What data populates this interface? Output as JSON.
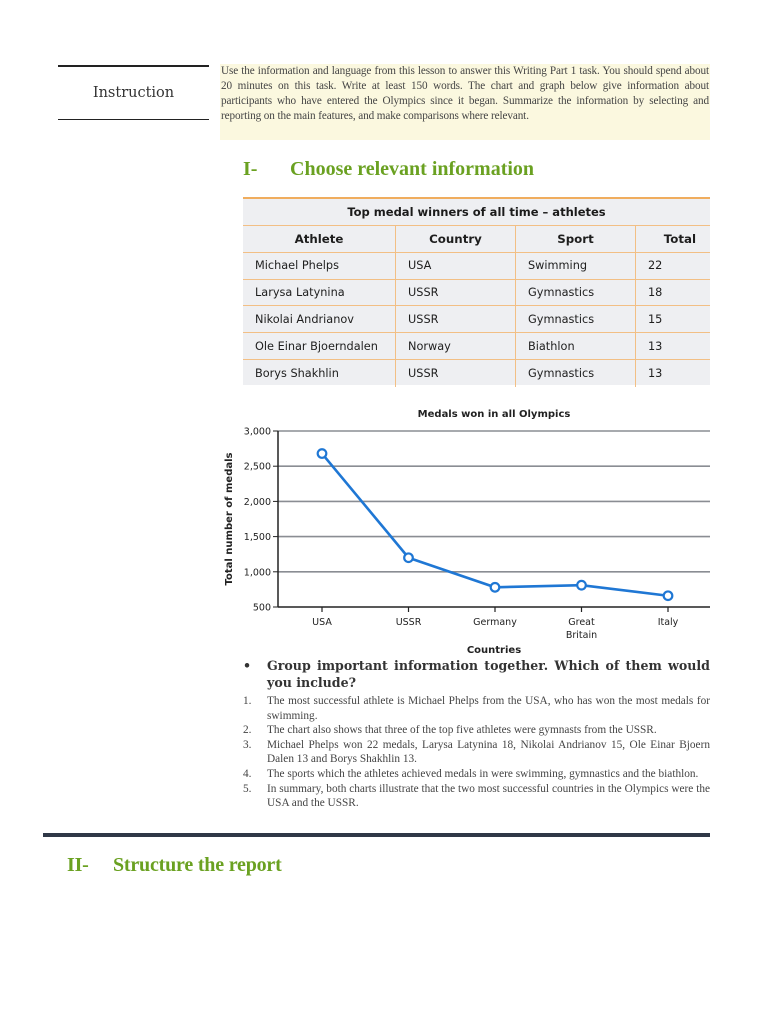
{
  "instruction": {
    "label": "Instruction",
    "text": "Use the information and language from this lesson to answer this Writing Part 1 task. You should spend about 20 minutes on this task. Write at least 150 words. The chart and graph below give information about participants who have entered the Olympics since it began. Summarize the information by selecting and reporting on the main features, and make comparisons where relevant."
  },
  "section1": {
    "number": "I-",
    "title": "Choose relevant information"
  },
  "table": {
    "title": "Top medal winners of all time – athletes",
    "headers": [
      "Athlete",
      "Country",
      "Sport",
      "Total"
    ],
    "rows": [
      [
        "Michael Phelps",
        "USA",
        "Swimming",
        "22"
      ],
      [
        "Larysa Latynina",
        "USSR",
        "Gymnastics",
        "18"
      ],
      [
        "Nikolai Andrianov",
        "USSR",
        "Gymnastics",
        "15"
      ],
      [
        "Ole Einar Bjoerndalen",
        "Norway",
        "Biathlon",
        "13"
      ],
      [
        "Borys Shakhlin",
        "USSR",
        "Gymnastics",
        "13"
      ]
    ]
  },
  "chart_data": {
    "type": "line",
    "title": "Medals won in all Olympics",
    "xlabel": "Countries",
    "ylabel": "Total number of medals",
    "categories": [
      "USA",
      "USSR",
      "Germany",
      "Great Britain",
      "Italy"
    ],
    "category_lines": [
      [
        "USA"
      ],
      [
        "USSR"
      ],
      [
        "Germany"
      ],
      [
        "Great",
        "Britain"
      ],
      [
        "Italy"
      ]
    ],
    "values": [
      2680,
      1200,
      780,
      810,
      660
    ],
    "yticks": [
      "3,000",
      "2,500",
      "2,000",
      "1,500",
      "1,000",
      "500"
    ],
    "ylim": [
      500,
      3000
    ],
    "grid": true,
    "legend": null,
    "line_color": "#1f77d4"
  },
  "question": {
    "bullet": "•",
    "text": "Group important information together. Which of them would you include?"
  },
  "items": [
    {
      "n": "1.",
      "text": "The most successful athlete is Michael Phelps from the USA, who has won the most medals for swimming."
    },
    {
      "n": "2.",
      "text": "The chart also shows that three of the top five athletes were gymnasts from the USSR."
    },
    {
      "n": "3.",
      "text": "Michael Phelps won 22 medals, Larysa Latynina 18, Nikolai Andrianov 15, Ole Einar Bjoern Dalen 13 and Borys Shakhlin 13."
    },
    {
      "n": "4.",
      "text": "The sports which the athletes achieved medals in were swimming, gymnastics and the biathlon."
    },
    {
      "n": "5.",
      "text": "In summary, both charts illustrate that the two most successful countries in the Olympics were the USA and the USSR."
    }
  ],
  "section2": {
    "number": "II-",
    "title": "Structure the report"
  }
}
